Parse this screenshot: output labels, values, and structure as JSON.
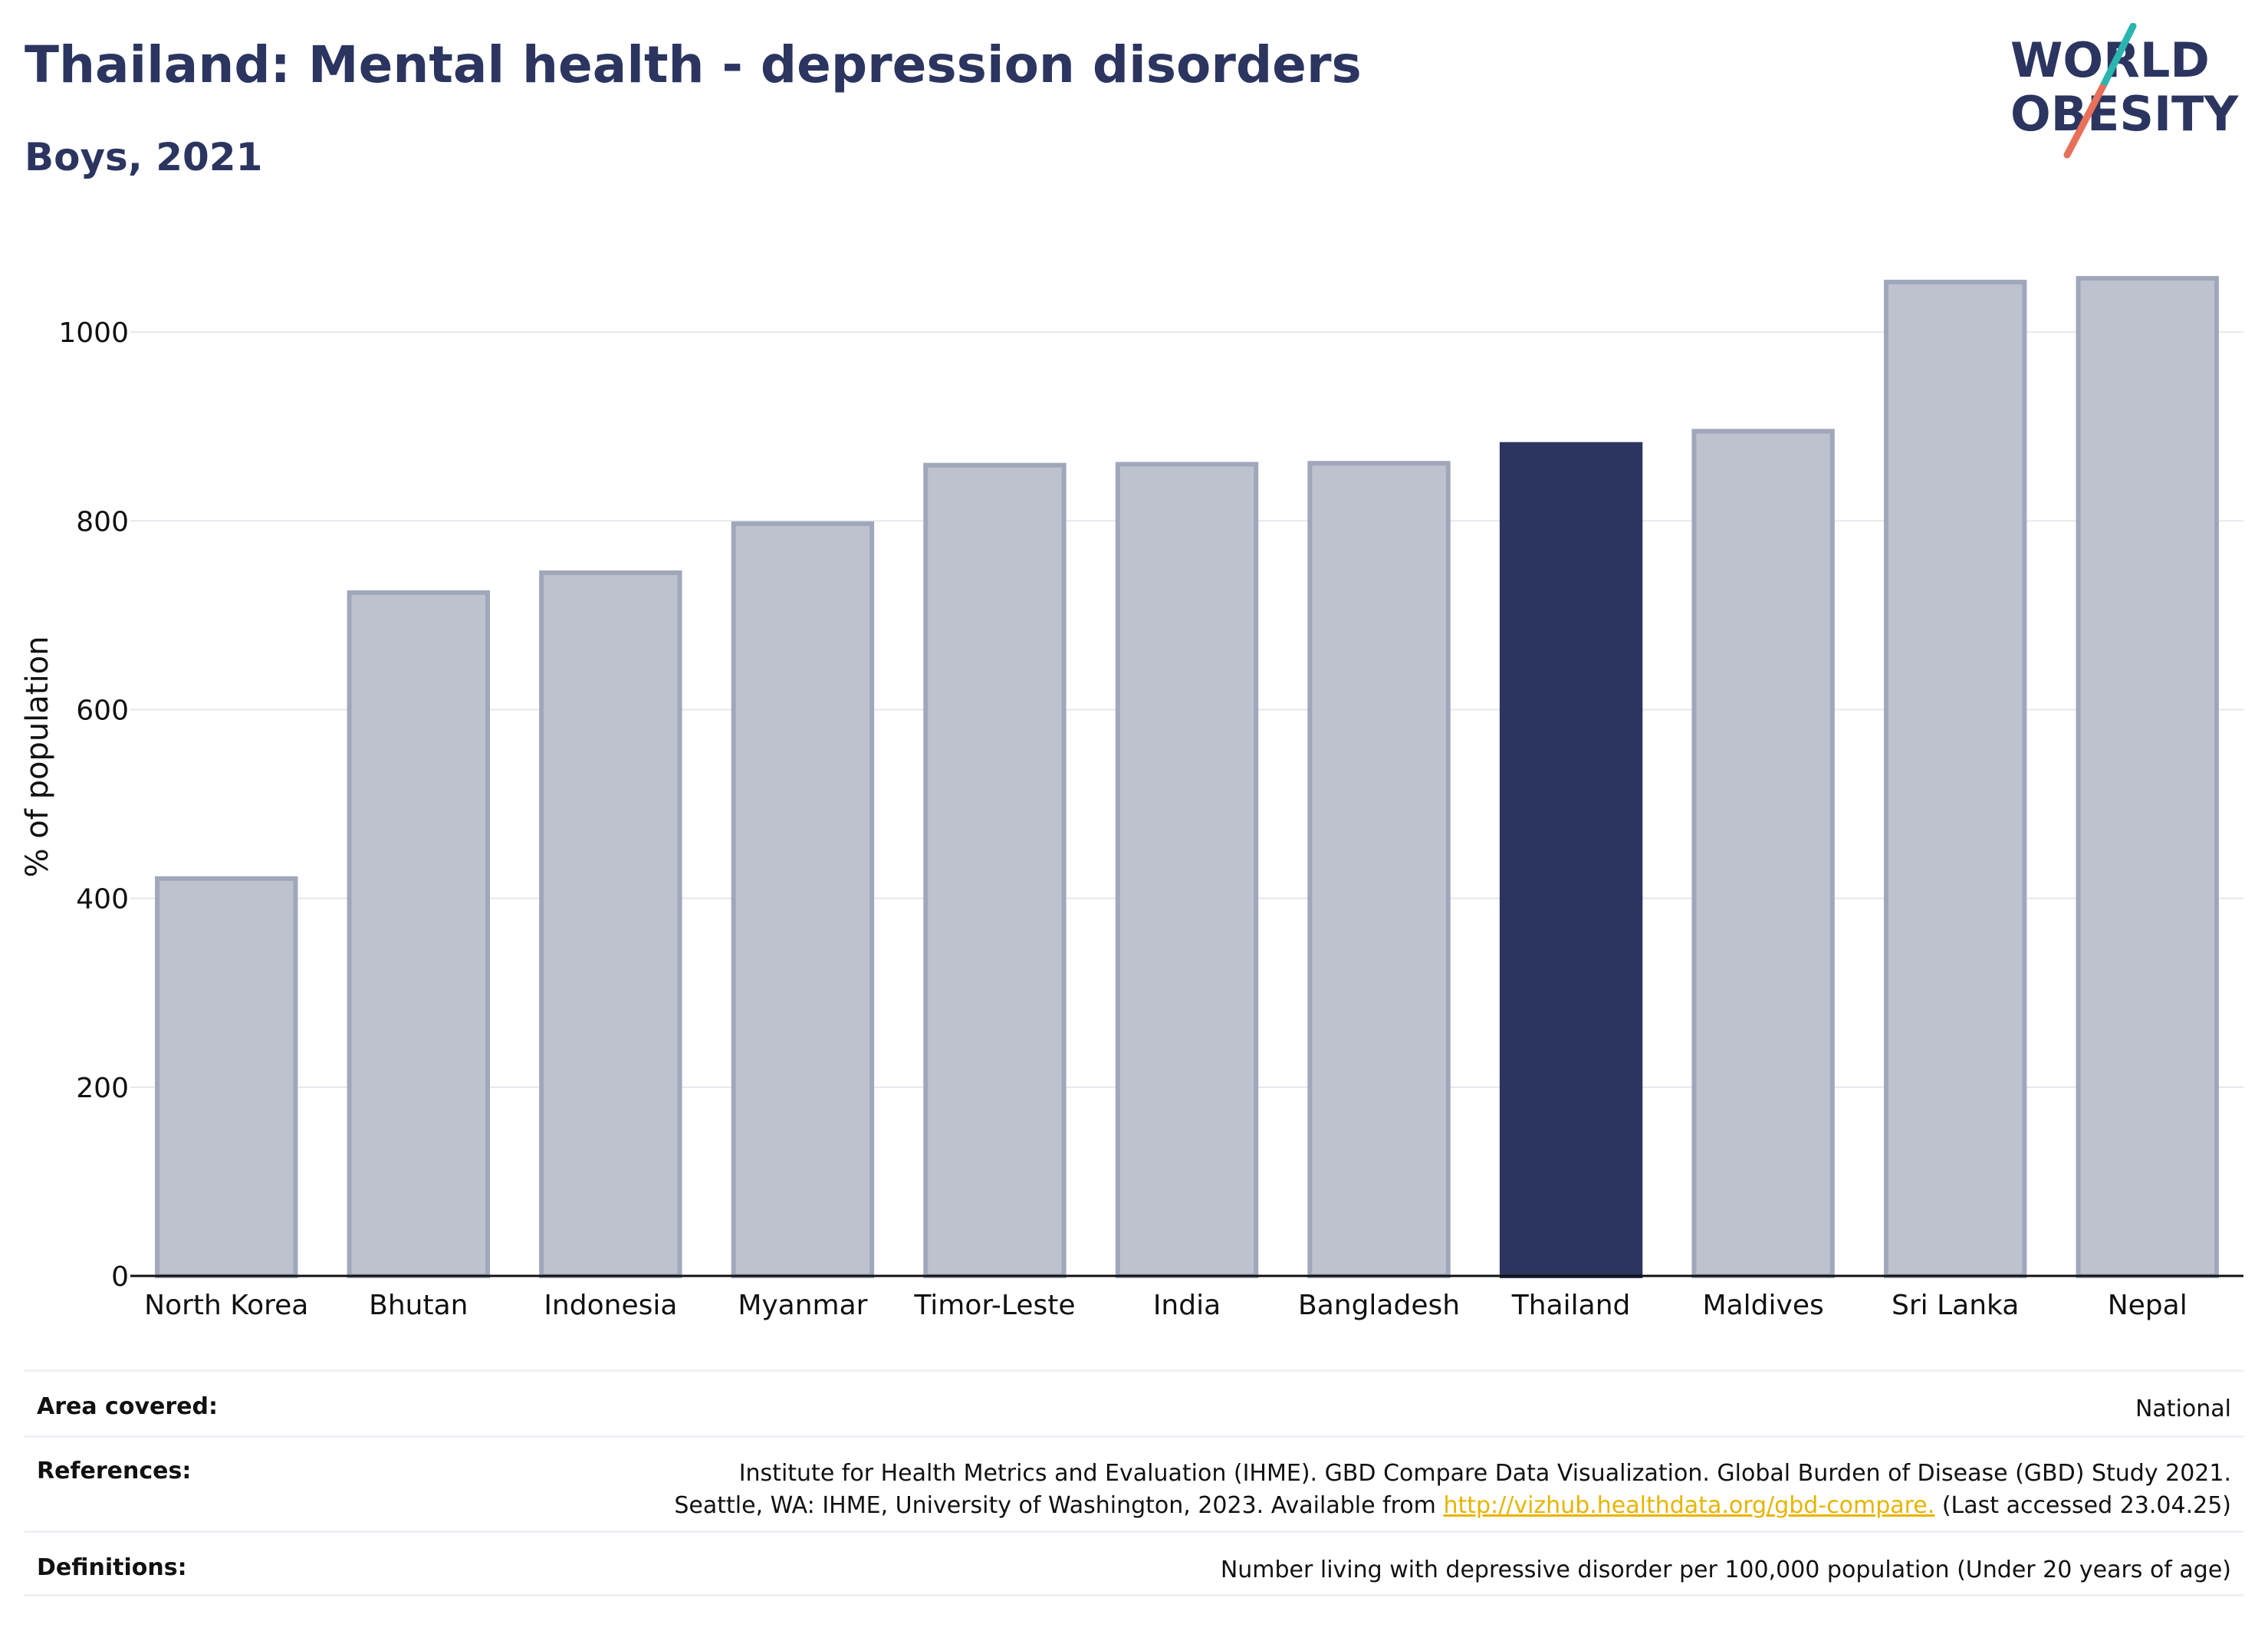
{
  "header": {
    "title": "Thailand: Mental health - depression disorders",
    "subtitle": "Boys, 2021"
  },
  "logo": {
    "line1": "WORLD",
    "line2": "OBESITY",
    "colors": {
      "text": "#2b3560",
      "slash_top": "#2bb5b0",
      "slash_bottom": "#e8705a"
    }
  },
  "chart_data": {
    "type": "bar",
    "categories": [
      "North Korea",
      "Bhutan",
      "Indonesia",
      "Myanmar",
      "Timor-Leste",
      "India",
      "Bangladesh",
      "Thailand",
      "Maldives",
      "Sri Lanka",
      "Nepal"
    ],
    "values": [
      421,
      724,
      745,
      797,
      859,
      860,
      861,
      881,
      895,
      1053,
      1057
    ],
    "highlight": "Thailand",
    "ylabel": "% of population",
    "xlabel": "",
    "ylim": [
      0,
      1100
    ],
    "yticks": [
      0,
      200,
      400,
      600,
      800,
      1000
    ],
    "grid": true,
    "legend": "none",
    "colors": {
      "bar": "#bec2cf",
      "bar_edge": "#a1a7bb",
      "highlight": "#2b3560",
      "grid": "#e6e8ee",
      "axis": "#111111"
    }
  },
  "info": {
    "area_label": "Area covered:",
    "area_value": "National",
    "references_label": "References:",
    "references_line1": "Institute for Health Metrics and Evaluation (IHME). GBD Compare Data Visualization. Global Burden of Disease (GBD) Study 2021.",
    "references_line2_pre": "Seattle, WA: IHME, University of Washington, 2023. Available from ",
    "references_link": "http://vizhub.healthdata.org/gbd-compare.",
    "references_line2_post": " (Last accessed 23.04.25)",
    "definitions_label": "Definitions:",
    "definitions_value": "Number living with depressive disorder per 100,000 population (Under 20 years of age)"
  }
}
